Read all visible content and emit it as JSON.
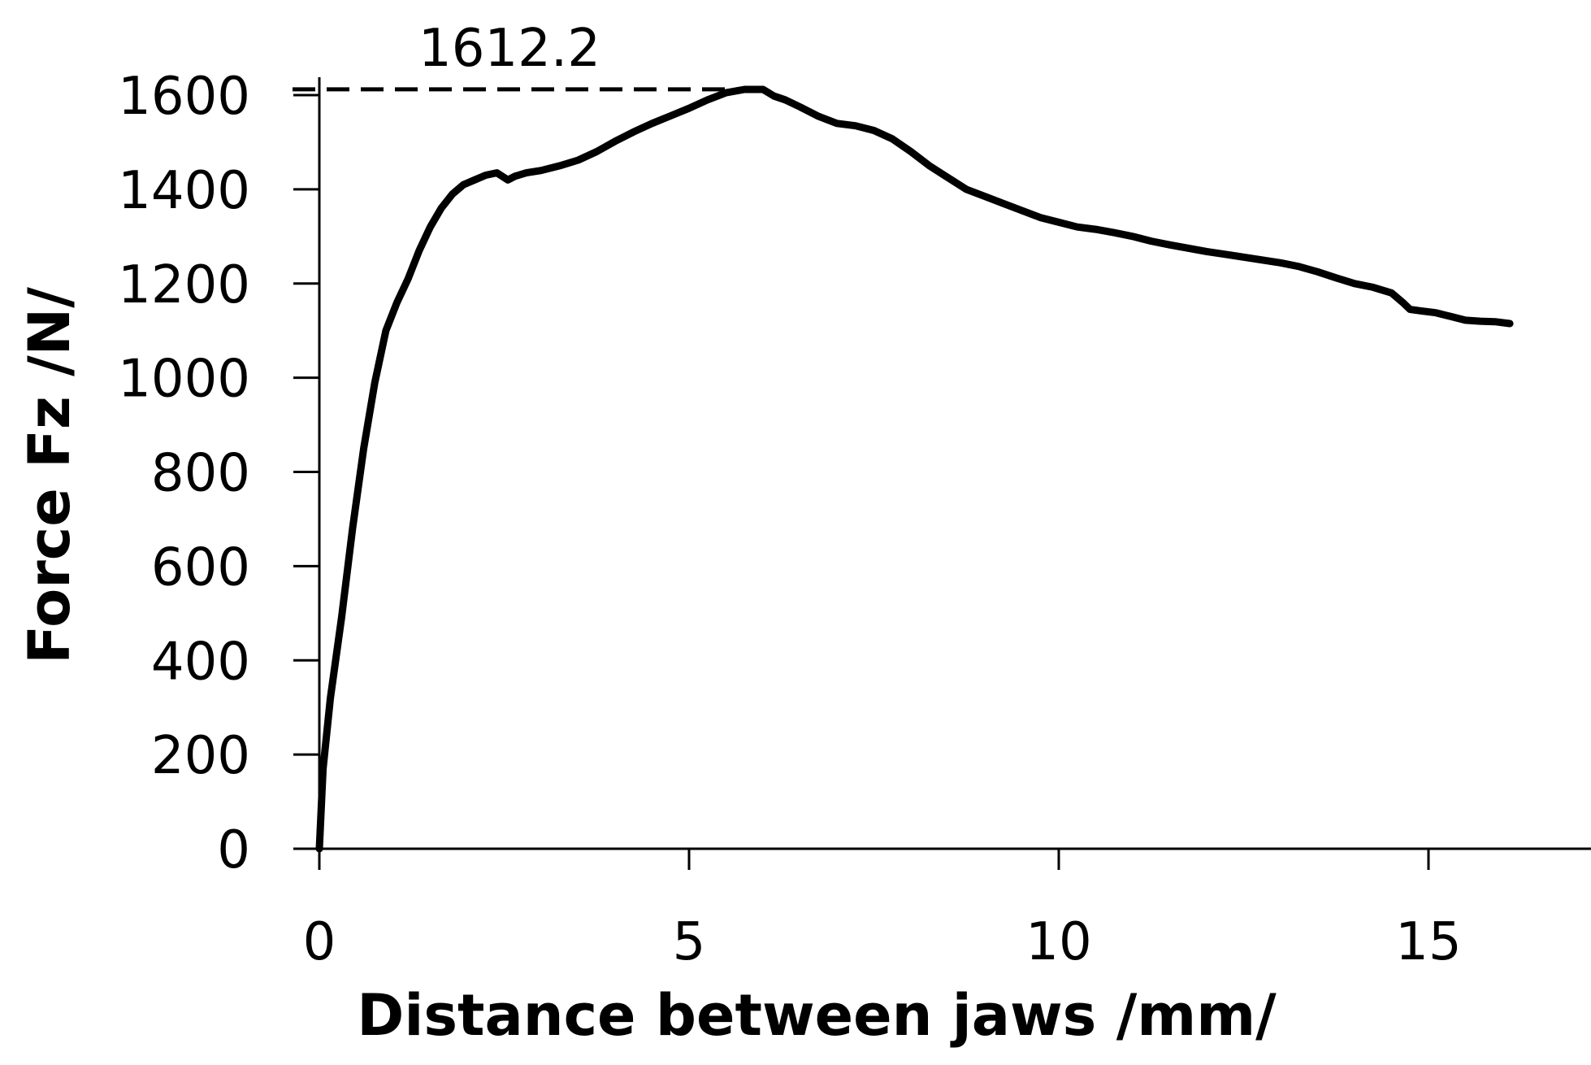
{
  "chart_data": {
    "type": "line",
    "title": "",
    "xlabel": "Distance between jaws /mm/",
    "ylabel": "Force Fz /N/",
    "xlim": [
      0,
      17.5
    ],
    "ylim": [
      0,
      1600
    ],
    "xticks": [
      0,
      5,
      10,
      15
    ],
    "yticks": [
      0,
      200,
      400,
      600,
      800,
      1000,
      1200,
      1400,
      1600
    ],
    "grid": false,
    "legend": "none",
    "line_color": "#000000",
    "annotation": {
      "label": "1612.2",
      "value": 1612.2,
      "x_end": 6.0,
      "style": "dashed"
    },
    "series": [
      {
        "x": [
          0.0,
          0.05,
          0.15,
          0.3,
          0.45,
          0.6,
          0.75,
          0.9,
          1.05,
          1.2,
          1.35,
          1.5,
          1.65,
          1.8,
          1.95,
          2.1,
          2.25,
          2.4,
          2.55,
          2.65,
          2.8,
          3.0,
          3.25,
          3.5,
          3.75,
          4.0,
          4.25,
          4.5,
          4.75,
          5.0,
          5.25,
          5.5,
          5.75,
          6.0,
          6.15,
          6.3,
          6.5,
          6.75,
          7.0,
          7.25,
          7.5,
          7.75,
          8.0,
          8.25,
          8.5,
          8.75,
          9.0,
          9.25,
          9.5,
          9.75,
          10.0,
          10.25,
          10.5,
          10.75,
          11.0,
          11.25,
          11.5,
          11.75,
          12.0,
          12.25,
          12.5,
          12.75,
          13.0,
          13.25,
          13.5,
          13.75,
          14.0,
          14.25,
          14.5,
          14.65,
          14.75,
          14.9,
          15.1,
          15.3,
          15.5,
          15.7,
          15.9,
          16.1
        ],
        "y": [
          0,
          170,
          320,
          490,
          680,
          850,
          990,
          1100,
          1160,
          1210,
          1270,
          1320,
          1360,
          1390,
          1410,
          1420,
          1430,
          1435,
          1420,
          1428,
          1435,
          1440,
          1450,
          1462,
          1480,
          1502,
          1522,
          1540,
          1556,
          1572,
          1590,
          1605,
          1612,
          1612,
          1598,
          1590,
          1575,
          1555,
          1540,
          1535,
          1525,
          1507,
          1480,
          1450,
          1425,
          1400,
          1385,
          1370,
          1355,
          1340,
          1330,
          1320,
          1315,
          1308,
          1300,
          1290,
          1282,
          1275,
          1268,
          1262,
          1256,
          1250,
          1244,
          1236,
          1225,
          1212,
          1200,
          1192,
          1180,
          1160,
          1145,
          1142,
          1138,
          1130,
          1122,
          1120,
          1119,
          1115
        ]
      }
    ]
  }
}
